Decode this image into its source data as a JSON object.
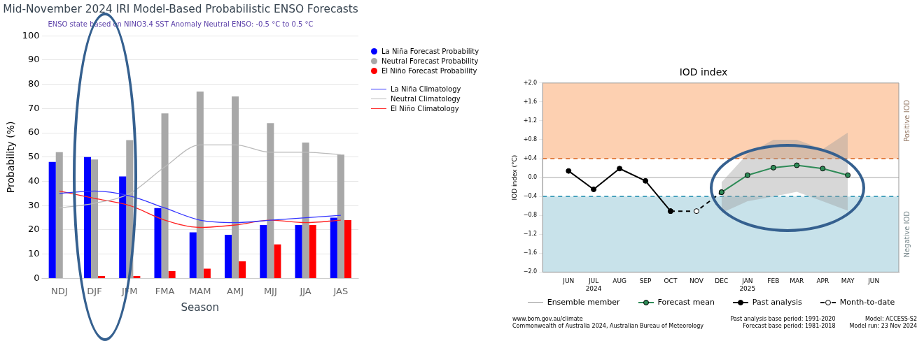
{
  "chart_data": [
    {
      "type": "bar",
      "title": "Mid-November 2024 IRI Model-Based Probabilistic ENSO Forecasts",
      "subtitle": "ENSO state based on NINO3.4 SST Anomaly Neutral ENSO: -0.5 °C to 0.5 °C",
      "xlabel": "Season",
      "ylabel": "Probability (%)",
      "categories": [
        "NDJ",
        "DJF",
        "JFM",
        "FMA",
        "MAM",
        "AMJ",
        "MJJ",
        "JJA",
        "JAS"
      ],
      "series": [
        {
          "name": "La Niña Forecast Probability",
          "color": "#0000ff",
          "values": [
            48,
            50,
            42,
            29,
            19,
            18,
            22,
            22,
            25
          ]
        },
        {
          "name": "Neutral Forecast Probability",
          "color": "#a8a8a8",
          "values": [
            52,
            49,
            57,
            68,
            77,
            75,
            64,
            56,
            51
          ]
        },
        {
          "name": "El Niño Forecast Probability",
          "color": "#ff0000",
          "values": [
            0,
            1,
            1,
            3,
            4,
            7,
            14,
            22,
            24
          ]
        },
        {
          "name": "La Niña Climatology",
          "type": "line",
          "color": "#3333ff",
          "values": [
            35,
            36,
            34,
            29,
            24,
            23,
            24,
            25,
            26
          ]
        },
        {
          "name": "Neutral Climatology",
          "type": "line",
          "color": "#bbbbbb",
          "values": [
            29,
            31,
            35,
            46,
            55,
            55,
            52,
            52,
            51
          ]
        },
        {
          "name": "El Niño Climatology",
          "type": "line",
          "color": "#ff2222",
          "values": [
            36,
            33,
            30,
            24,
            21,
            22,
            24,
            23,
            24
          ]
        }
      ],
      "ylim": [
        0,
        100
      ],
      "yticks": [
        0,
        10,
        20,
        30,
        40,
        50,
        60,
        70,
        80,
        90,
        100
      ],
      "grid": "y",
      "legend": "top right"
    },
    {
      "type": "line",
      "title": "IOD index",
      "ylabel": "IOD index (°C)",
      "xlim": [
        "2024-05",
        "2025-07"
      ],
      "xticks": [
        {
          "value": "2024-06",
          "label": "JUN"
        },
        {
          "value": "2024-07",
          "label": "JUL\n2024"
        },
        {
          "value": "2024-08",
          "label": "AUG"
        },
        {
          "value": "2024-09",
          "label": "SEP"
        },
        {
          "value": "2024-10",
          "label": "OCT"
        },
        {
          "value": "2024-11",
          "label": "NOV"
        },
        {
          "value": "2024-12",
          "label": "DEC"
        },
        {
          "value": "2025-01",
          "label": "JAN\n2025"
        },
        {
          "value": "2025-02",
          "label": "FEB"
        },
        {
          "value": "2025-03",
          "label": "MAR"
        },
        {
          "value": "2025-04",
          "label": "APR"
        },
        {
          "value": "2025-05",
          "label": "MAY"
        },
        {
          "value": "2025-06",
          "label": "JUN"
        }
      ],
      "ylim": [
        -2,
        2
      ],
      "yticks": [
        {
          "value": 2,
          "label": "+2.0"
        },
        {
          "value": 1.6,
          "label": "+1.6"
        },
        {
          "value": 1.2,
          "label": "+1.2"
        },
        {
          "value": 0.8,
          "label": "+0.8"
        },
        {
          "value": 0.4,
          "label": "+0.4"
        },
        {
          "value": 0,
          "label": "0.0"
        },
        {
          "value": -0.4,
          "label": "−0.4"
        },
        {
          "value": -0.8,
          "label": "−0.8"
        },
        {
          "value": -1.2,
          "label": "−1.2"
        },
        {
          "value": -1.6,
          "label": "−1.6"
        },
        {
          "value": -2,
          "label": "−2.0"
        }
      ],
      "marker": "circle",
      "legend": "bottom",
      "series": [
        {
          "name": "Ensemble member",
          "color": "#9a9a9a",
          "marker": "none",
          "x": [
            "2024-12",
            "2025-01",
            "2025-02",
            "2025-03",
            "2025-04",
            "2025-05"
          ],
          "values": [
            null,
            null,
            null,
            null,
            null,
            null
          ],
          "lower": [
            -0.75,
            -0.5,
            -0.4,
            -0.3,
            -0.5,
            -0.7
          ],
          "upper": [
            -0.1,
            0.5,
            0.8,
            0.8,
            0.6,
            0.95
          ]
        },
        {
          "name": "Forecast mean",
          "color": "#2e8b57",
          "x": [
            "2024-12",
            "2025-01",
            "2025-02",
            "2025-03",
            "2025-04",
            "2025-05"
          ],
          "values": [
            -0.31,
            0.05,
            0.21,
            0.26,
            0.19,
            0.05
          ]
        },
        {
          "name": "Past analysis",
          "color": "#000000",
          "x": [
            "2024-06",
            "2024-07",
            "2024-08",
            "2024-09",
            "2024-10"
          ],
          "values": [
            0.14,
            -0.25,
            0.19,
            -0.07,
            -0.71
          ]
        },
        {
          "name": "Month-to-date",
          "color": "#000000",
          "line_style": "dashed",
          "x": [
            "2024-10",
            "2024-11",
            "2024-12"
          ],
          "values": [
            -0.71,
            -0.71,
            -0.31
          ]
        }
      ],
      "bands": [
        {
          "axis": "y",
          "from": 0.4,
          "to": 2,
          "label": "Positive IOD",
          "color": "#fdd0b1"
        },
        {
          "axis": "y",
          "from": -2,
          "to": -0.4,
          "label": "Negative IOD",
          "color": "#c8e2ea"
        }
      ],
      "ref_lines": [
        {
          "axis": "y",
          "value": 0.4,
          "color": "#d9601a",
          "line_style": "dashed"
        },
        {
          "axis": "y",
          "value": -0.4,
          "color": "#3a9bb8",
          "line_style": "dashed"
        },
        {
          "axis": "y",
          "value": 0,
          "color": "#cccccc",
          "line_style": "solid"
        }
      ],
      "annotations": [
        "www.bom.gov.au/climate",
        "Commonwealth of Australia 2024, Australian Bureau of Meteorology",
        "Past analysis base period: 1991-2020",
        "Forecast base period: 1981-2018",
        "Model: ACCESS-S2",
        "Model run: 23 Nov 2024"
      ]
    }
  ]
}
